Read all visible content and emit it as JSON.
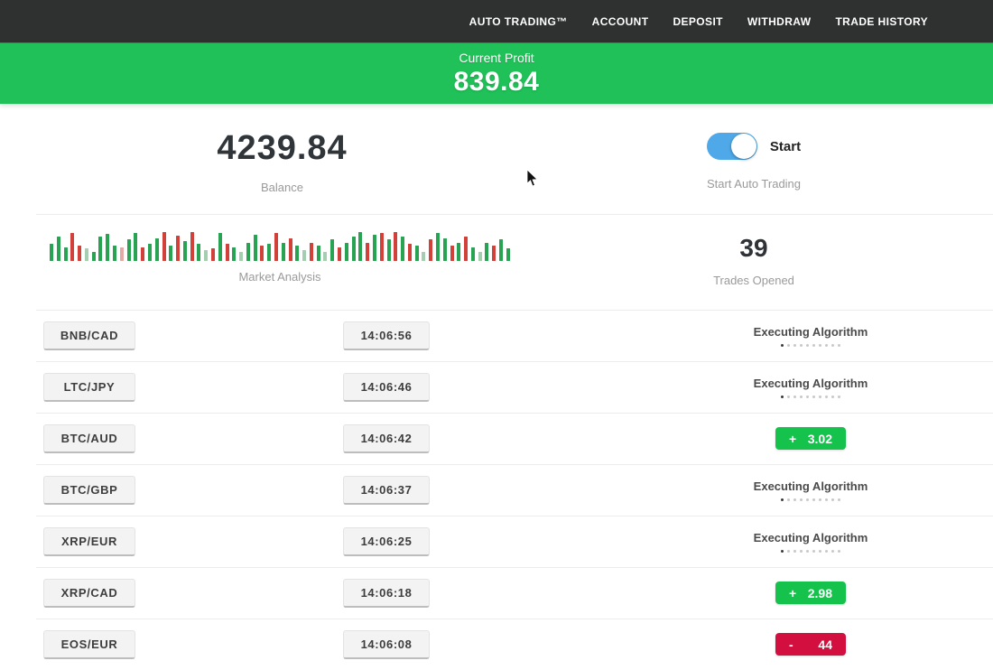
{
  "navbar": {
    "items": [
      "AUTO TRADING™",
      "ACCOUNT",
      "DEPOSIT",
      "WITHDRAW",
      "TRADE HISTORY"
    ]
  },
  "profit_banner": {
    "label": "Current Profit",
    "value": "839.84"
  },
  "account": {
    "balance": "4239.84",
    "balance_label": "Balance",
    "toggle_label": "Start",
    "toggle_caption": "Start Auto Trading",
    "toggle_on": true
  },
  "market": {
    "chart_label": "Market Analysis",
    "trades_opened": "39",
    "trades_label": "Trades Opened",
    "chart": {
      "type": "bar",
      "note": "dense mini market-analysis bars, baseline bottom, values are [color,heightPercent]",
      "bars": [
        [
          "g",
          55
        ],
        [
          "g",
          78
        ],
        [
          "g",
          45
        ],
        [
          "r",
          92
        ],
        [
          "r",
          50
        ],
        [
          "lg",
          40
        ],
        [
          "g",
          30
        ],
        [
          "g",
          80
        ],
        [
          "g",
          88
        ],
        [
          "g",
          50
        ],
        [
          "lr",
          45
        ],
        [
          "g",
          70
        ],
        [
          "g",
          92
        ],
        [
          "r",
          45
        ],
        [
          "g",
          55
        ],
        [
          "g",
          75
        ],
        [
          "r",
          95
        ],
        [
          "g",
          50
        ],
        [
          "r",
          82
        ],
        [
          "g",
          65
        ],
        [
          "r",
          95
        ],
        [
          "g",
          55
        ],
        [
          "lg",
          35
        ],
        [
          "r",
          40
        ],
        [
          "g",
          90
        ],
        [
          "r",
          55
        ],
        [
          "g",
          45
        ],
        [
          "lg",
          30
        ],
        [
          "g",
          60
        ],
        [
          "g",
          85
        ],
        [
          "r",
          50
        ],
        [
          "g",
          55
        ],
        [
          "r",
          90
        ],
        [
          "g",
          60
        ],
        [
          "r",
          75
        ],
        [
          "g",
          50
        ],
        [
          "lg",
          35
        ],
        [
          "r",
          60
        ],
        [
          "g",
          50
        ],
        [
          "lg",
          30
        ],
        [
          "g",
          70
        ],
        [
          "r",
          45
        ],
        [
          "g",
          60
        ],
        [
          "g",
          80
        ],
        [
          "g",
          95
        ],
        [
          "r",
          60
        ],
        [
          "g",
          85
        ],
        [
          "r",
          90
        ],
        [
          "g",
          70
        ],
        [
          "r",
          95
        ],
        [
          "g",
          80
        ],
        [
          "r",
          55
        ],
        [
          "g",
          50
        ],
        [
          "lg",
          30
        ],
        [
          "r",
          70
        ],
        [
          "g",
          90
        ],
        [
          "g",
          75
        ],
        [
          "r",
          50
        ],
        [
          "g",
          60
        ],
        [
          "r",
          80
        ],
        [
          "g",
          45
        ],
        [
          "lg",
          30
        ],
        [
          "g",
          60
        ],
        [
          "r",
          50
        ],
        [
          "g",
          70
        ],
        [
          "g",
          40
        ]
      ]
    }
  },
  "trades": [
    {
      "pair": "BNB/CAD",
      "time": "14:06:56",
      "status": {
        "type": "executing",
        "label": "Executing Algorithm"
      }
    },
    {
      "pair": "LTC/JPY",
      "time": "14:06:46",
      "status": {
        "type": "executing",
        "label": "Executing Algorithm"
      }
    },
    {
      "pair": "BTC/AUD",
      "time": "14:06:42",
      "status": {
        "type": "profit",
        "sign": "+",
        "value": "3.02"
      }
    },
    {
      "pair": "BTC/GBP",
      "time": "14:06:37",
      "status": {
        "type": "executing",
        "label": "Executing Algorithm"
      }
    },
    {
      "pair": "XRP/EUR",
      "time": "14:06:25",
      "status": {
        "type": "executing",
        "label": "Executing Algorithm"
      }
    },
    {
      "pair": "XRP/CAD",
      "time": "14:06:18",
      "status": {
        "type": "profit",
        "sign": "+",
        "value": "2.98"
      }
    },
    {
      "pair": "EOS/EUR",
      "time": "14:06:08",
      "status": {
        "type": "loss",
        "sign": "-",
        "value": "44"
      }
    }
  ],
  "colors": {
    "navbar_bg": "#2f3130",
    "banner_green": "#1fc158",
    "badge_green": "#14c24c",
    "badge_red": "#d30f3f",
    "toggle_blue": "#4fa8e8",
    "chart_green": "#27a352",
    "chart_red": "#d2403a"
  }
}
